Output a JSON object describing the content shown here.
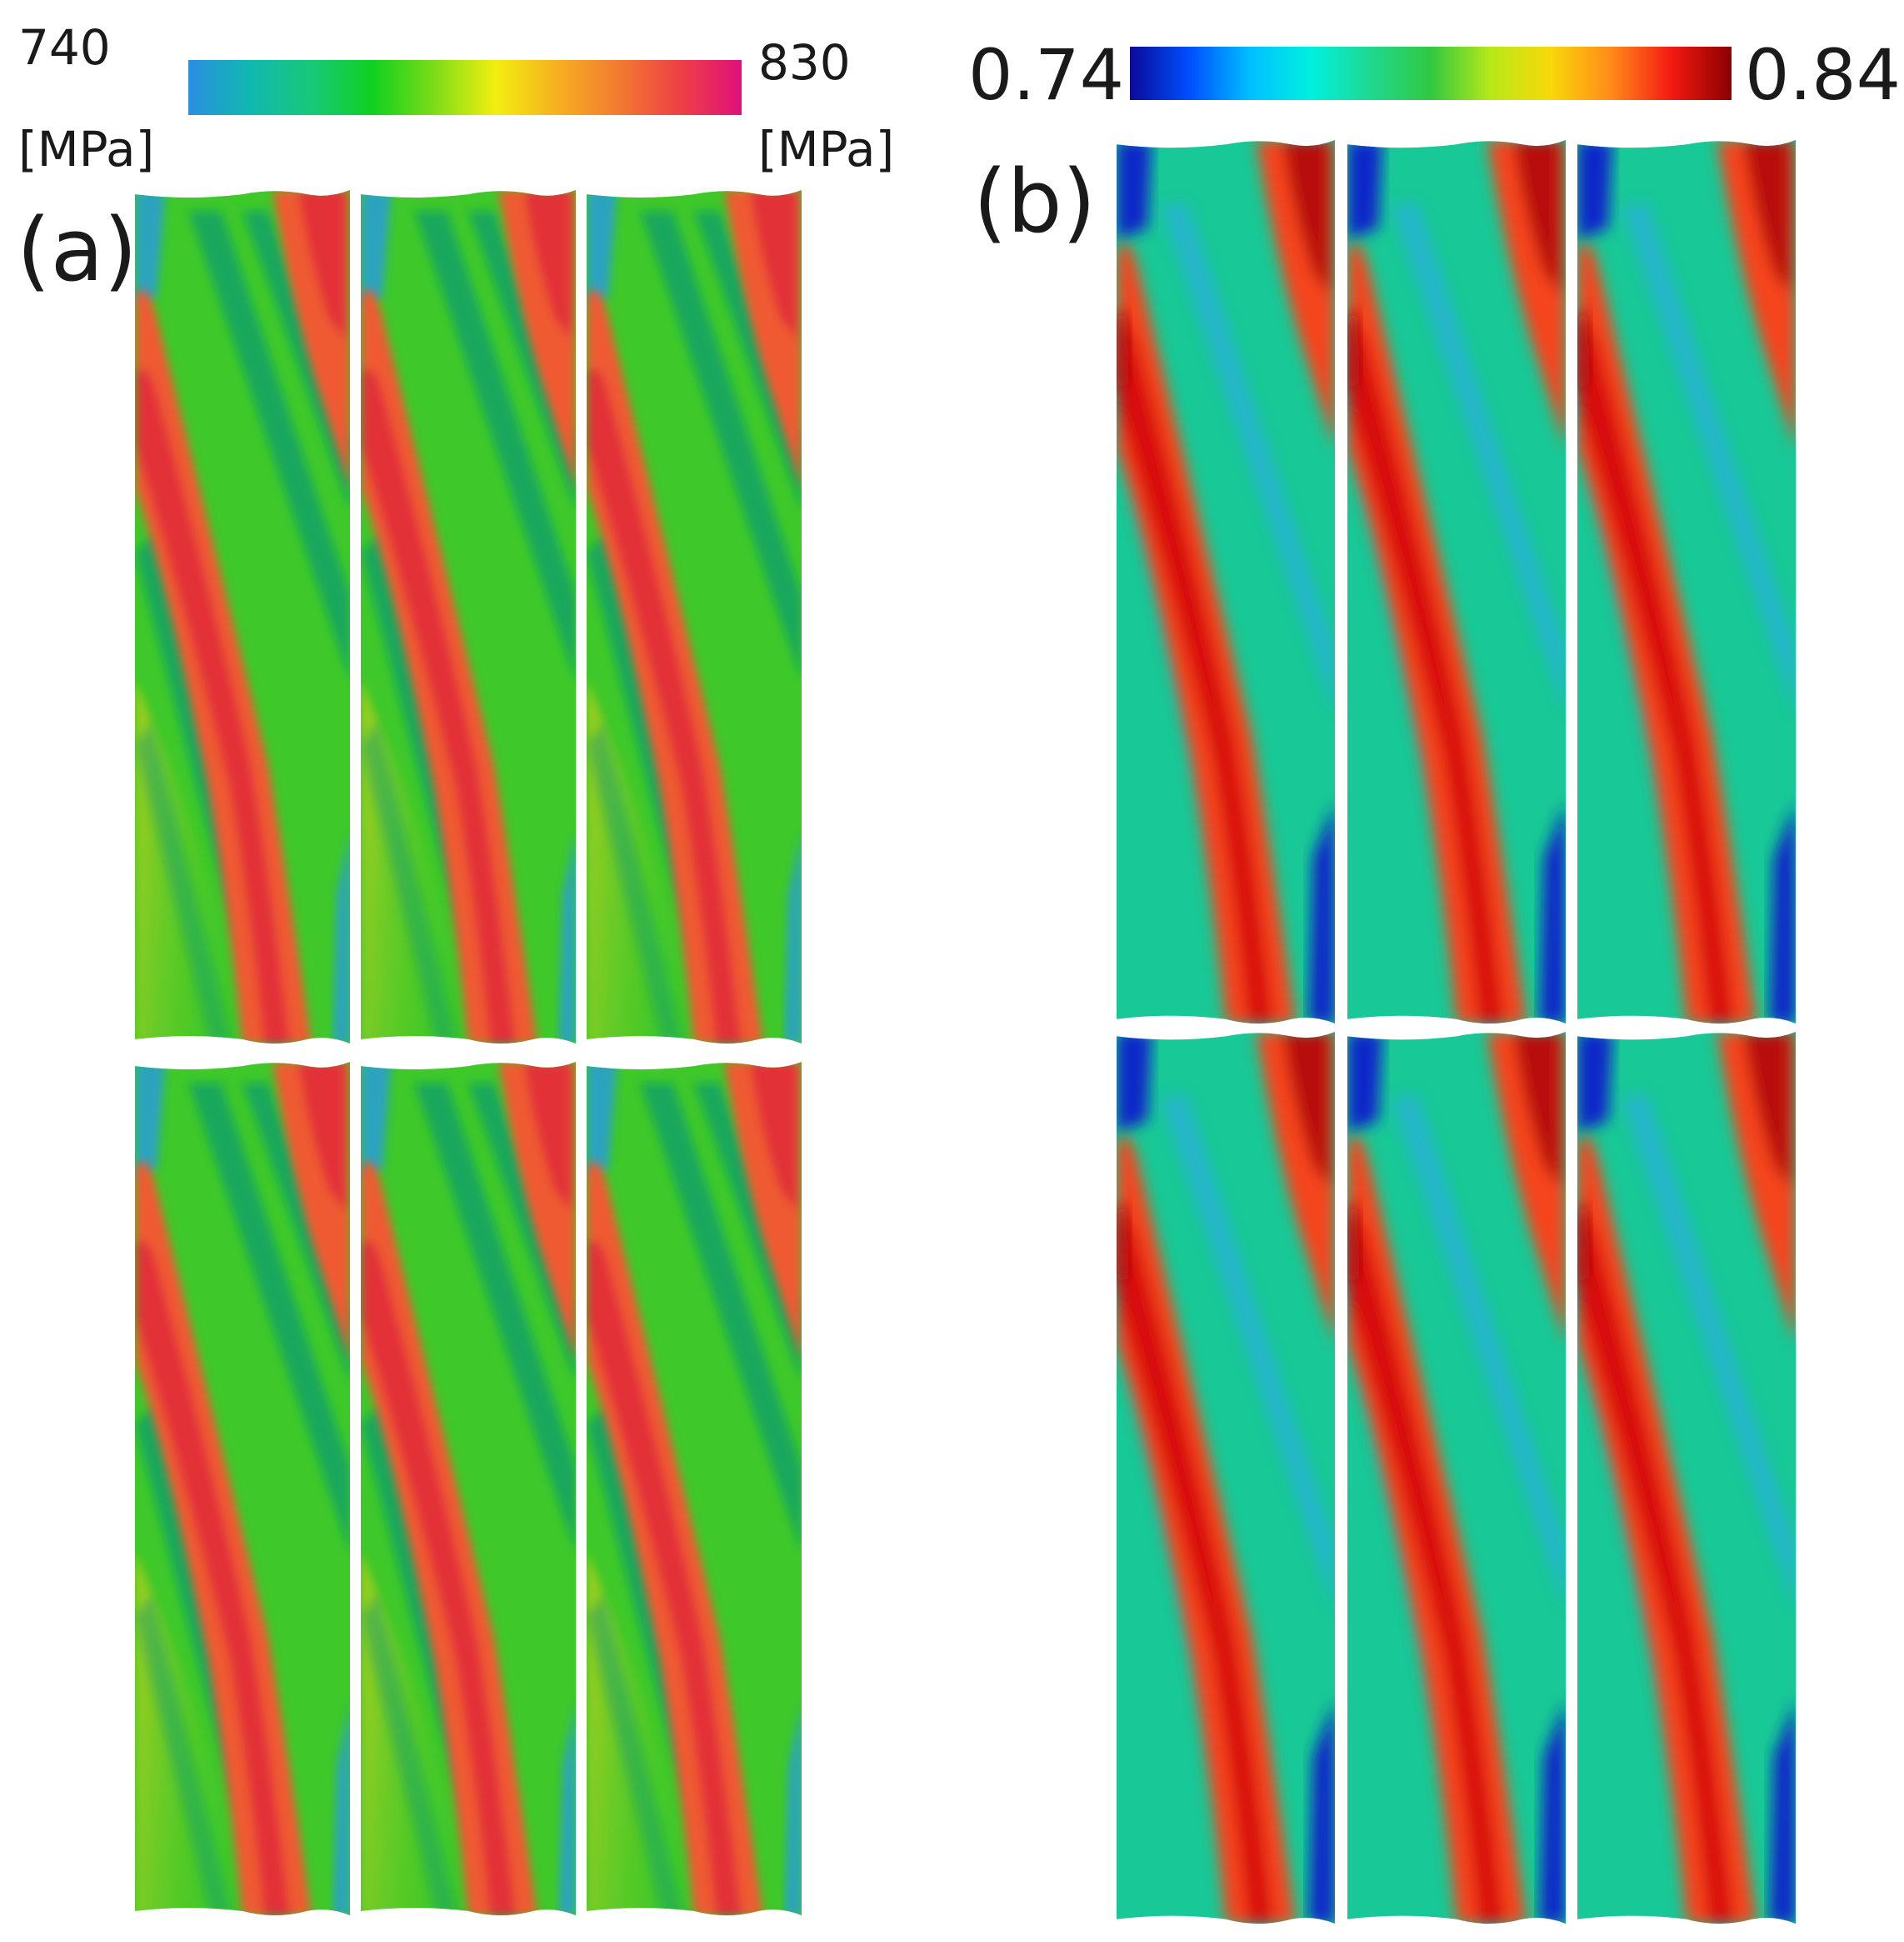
{
  "panel_a": {
    "letter": "(a)",
    "colorbar": {
      "min_label": "740",
      "max_label": "830",
      "unit": "[MPa]",
      "colors": [
        "#2a8fe0",
        "#10b8b0",
        "#18c878",
        "#10d020",
        "#7cdc18",
        "#f2ee10",
        "#f6b020",
        "#f27a30",
        "#ee4045",
        "#e0107a"
      ]
    },
    "colors": {
      "base": "#3ec82a",
      "band": "#ef5a30",
      "band_core": "#e23238",
      "dark": "#0e9d6e",
      "cool": "#2a9fd0",
      "warm": "#c8d018"
    }
  },
  "panel_b": {
    "letter": "(b)",
    "colorbar": {
      "min_label": "0.74",
      "max_label": "0.84",
      "colors": [
        "#0a0a9a",
        "#0050ff",
        "#00bfff",
        "#00f0e0",
        "#20d890",
        "#30c840",
        "#b8e818",
        "#f8d80a",
        "#ff8a1a",
        "#f41a12",
        "#8a0000"
      ]
    },
    "colors": {
      "base": "#18c896",
      "band": "#f5451a",
      "band_core": "#d80e0e",
      "cool": "#2aaee0",
      "deep": "#1028c8",
      "hot": "#b80808"
    }
  }
}
